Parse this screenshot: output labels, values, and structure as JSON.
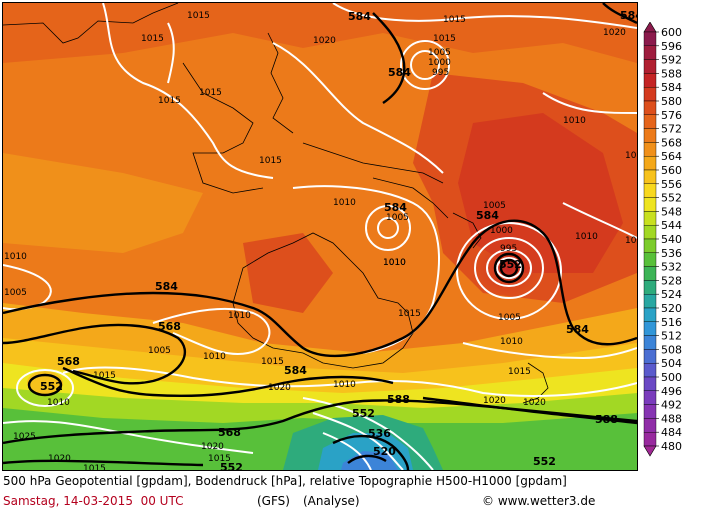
{
  "header": {
    "title": "500 hPa Geopotential [gpdam], Bodendruck [hPa], relative Topographie H500-H1000 [gpdam]",
    "date": "Samstag, 14-03-2015  00 UTC",
    "model": "(GFS)",
    "mode": "(Analyse)",
    "credit": "© www.wetter3.de"
  },
  "legend": {
    "units": "gpdam",
    "levels": [
      {
        "value": "600",
        "color": "#8b1a4c"
      },
      {
        "value": "596",
        "color": "#9e1c3e"
      },
      {
        "value": "592",
        "color": "#b01f30"
      },
      {
        "value": "588",
        "color": "#c42424"
      },
      {
        "value": "584",
        "color": "#d43a1e"
      },
      {
        "value": "580",
        "color": "#dd4f1c"
      },
      {
        "value": "576",
        "color": "#e5641a"
      },
      {
        "value": "572",
        "color": "#ec7a1a"
      },
      {
        "value": "568",
        "color": "#f0901a"
      },
      {
        "value": "564",
        "color": "#f4a81a"
      },
      {
        "value": "560",
        "color": "#f7c21c"
      },
      {
        "value": "556",
        "color": "#f8d81e"
      },
      {
        "value": "552",
        "color": "#eee420"
      },
      {
        "value": "548",
        "color": "#c8e020"
      },
      {
        "value": "544",
        "color": "#a2d824"
      },
      {
        "value": "540",
        "color": "#7ccc2c"
      },
      {
        "value": "536",
        "color": "#58c03a"
      },
      {
        "value": "532",
        "color": "#3cb456"
      },
      {
        "value": "528",
        "color": "#2eab7c"
      },
      {
        "value": "524",
        "color": "#28a7a2"
      },
      {
        "value": "520",
        "color": "#2aa2c6"
      },
      {
        "value": "516",
        "color": "#3196d8"
      },
      {
        "value": "512",
        "color": "#3c84d8"
      },
      {
        "value": "508",
        "color": "#4a6ed2"
      },
      {
        "value": "504",
        "color": "#5a5acc"
      },
      {
        "value": "500",
        "color": "#6a48c4"
      },
      {
        "value": "496",
        "color": "#7a3cbc"
      },
      {
        "value": "492",
        "color": "#8634b2"
      },
      {
        "value": "488",
        "color": "#902ea8"
      },
      {
        "value": "484",
        "color": "#982a9e"
      },
      {
        "value": "480",
        "color": "#a02894"
      }
    ]
  },
  "map": {
    "geopotential_labels": [
      "584",
      "584",
      "584",
      "584",
      "584",
      "584",
      "584",
      "568",
      "568",
      "552",
      "552",
      "552",
      "552",
      "552",
      "588",
      "588",
      "568",
      "536",
      "520",
      "584"
    ],
    "pressure_labels": [
      "1015",
      "1015",
      "1015",
      "1015",
      "1015",
      "1020",
      "1015",
      "1015",
      "1005",
      "1000",
      "995",
      "1010",
      "1010",
      "1005",
      "1000",
      "995",
      "1010",
      "1005",
      "1010",
      "1005",
      "1010",
      "1010",
      "1005",
      "1010",
      "1005",
      "1015",
      "1010",
      "1015",
      "1010",
      "1015",
      "1020",
      "1020",
      "1020",
      "1015",
      "1025",
      "1020",
      "1015",
      "1020",
      "1015",
      "1010",
      "1010",
      "1010",
      "1010",
      "1020"
    ]
  }
}
